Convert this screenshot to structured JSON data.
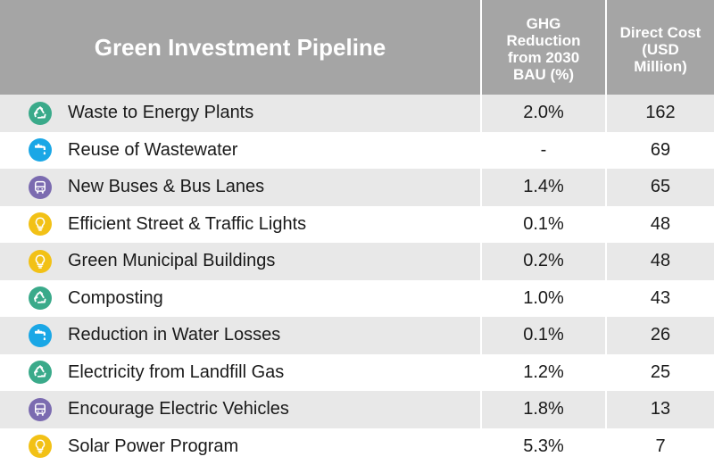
{
  "header": {
    "title": "Green Investment Pipeline",
    "ghg": "GHG\nReduction\nfrom 2030\nBAU (%)",
    "cost": "Direct Cost\n(USD\nMillion)"
  },
  "colors": {
    "header_bg": "#a5a5a5",
    "row_alt": "#e8e8e8",
    "recycle": "#3aaa8a",
    "water": "#1aa7e6",
    "bus": "#7b6bb0",
    "bulb": "#f2c116"
  },
  "rows": [
    {
      "icon": "recycle-icon",
      "name": "Waste to Energy Plants",
      "ghg": "2.0%",
      "cost": "162"
    },
    {
      "icon": "water-tap-icon",
      "name": "Reuse of Wastewater",
      "ghg": "-",
      "cost": "69"
    },
    {
      "icon": "bus-icon",
      "name": "New Buses & Bus Lanes",
      "ghg": "1.4%",
      "cost": "65"
    },
    {
      "icon": "lightbulb-icon",
      "name": "Efficient Street & Traffic Lights",
      "ghg": "0.1%",
      "cost": "48"
    },
    {
      "icon": "lightbulb-icon",
      "name": "Green Municipal Buildings",
      "ghg": "0.2%",
      "cost": "48"
    },
    {
      "icon": "recycle-icon",
      "name": "Composting",
      "ghg": "1.0%",
      "cost": "43"
    },
    {
      "icon": "water-tap-icon",
      "name": "Reduction in Water Losses",
      "ghg": "0.1%",
      "cost": "26"
    },
    {
      "icon": "recycle-icon",
      "name": "Electricity from Landfill Gas",
      "ghg": "1.2%",
      "cost": "25"
    },
    {
      "icon": "bus-icon",
      "name": "Encourage Electric Vehicles",
      "ghg": "1.8%",
      "cost": "13"
    },
    {
      "icon": "lightbulb-icon",
      "name": "Solar Power Program",
      "ghg": "5.3%",
      "cost": "7"
    }
  ]
}
